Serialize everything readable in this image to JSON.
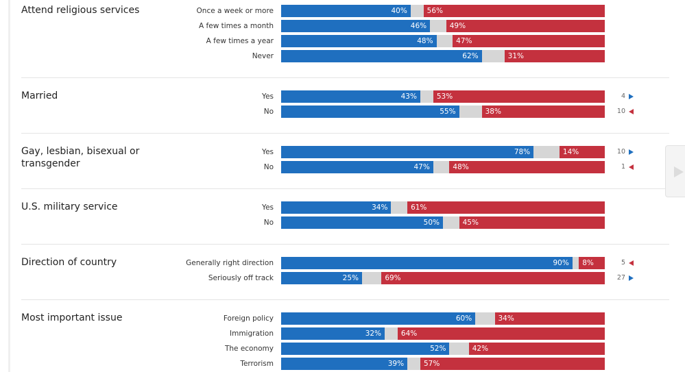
{
  "chart_data": {
    "type": "bar",
    "stacked": true,
    "orientation": "horizontal",
    "colors": {
      "democrat": "#1f6fbf",
      "other": "#d6d6d6",
      "republican": "#c4313e"
    },
    "groups": [
      {
        "title": "Attend religious services",
        "rows": [
          {
            "label": "Once a week or more",
            "dem": 40,
            "rep": 56,
            "dem_label": "40%",
            "rep_label": "56%"
          },
          {
            "label": "A few times a month",
            "dem": 46,
            "rep": 49,
            "dem_label": "46%",
            "rep_label": "49%"
          },
          {
            "label": "A few times a year",
            "dem": 48,
            "rep": 47,
            "dem_label": "48%",
            "rep_label": "47%"
          },
          {
            "label": "Never",
            "dem": 62,
            "rep": 31,
            "dem_label": "62%",
            "rep_label": "31%"
          }
        ]
      },
      {
        "title": "Married",
        "rows": [
          {
            "label": "Yes",
            "dem": 43,
            "rep": 53,
            "dem_label": "43%",
            "rep_label": "53%",
            "change": "4",
            "direction": "right"
          },
          {
            "label": "No",
            "dem": 55,
            "rep": 38,
            "dem_label": "55%",
            "rep_label": "38%",
            "change": "10",
            "direction": "left"
          }
        ]
      },
      {
        "title": "Gay, lesbian, bisexual or\ntransgender",
        "rows": [
          {
            "label": "Yes",
            "dem": 78,
            "rep": 14,
            "dem_label": "78%",
            "rep_label": "14%",
            "change": "10",
            "direction": "right"
          },
          {
            "label": "No",
            "dem": 47,
            "rep": 48,
            "dem_label": "47%",
            "rep_label": "48%",
            "change": "1",
            "direction": "left"
          }
        ]
      },
      {
        "title": "U.S. military service",
        "rows": [
          {
            "label": "Yes",
            "dem": 34,
            "rep": 61,
            "dem_label": "34%",
            "rep_label": "61%"
          },
          {
            "label": "No",
            "dem": 50,
            "rep": 45,
            "dem_label": "50%",
            "rep_label": "45%"
          }
        ]
      },
      {
        "title": "Direction of country",
        "rows": [
          {
            "label": "Generally right direction",
            "dem": 90,
            "rep": 8,
            "dem_label": "90%",
            "rep_label": "8%",
            "change": "5",
            "direction": "left"
          },
          {
            "label": "Seriously off track",
            "dem": 25,
            "rep": 69,
            "dem_label": "25%",
            "rep_label": "69%",
            "change": "27",
            "direction": "right"
          }
        ]
      },
      {
        "title": "Most important issue",
        "rows": [
          {
            "label": "Foreign policy",
            "dem": 60,
            "rep": 34,
            "dem_label": "60%",
            "rep_label": "34%"
          },
          {
            "label": "Immigration",
            "dem": 32,
            "rep": 64,
            "dem_label": "32%",
            "rep_label": "64%"
          },
          {
            "label": "The economy",
            "dem": 52,
            "rep": 42,
            "dem_label": "52%",
            "rep_label": "42%"
          },
          {
            "label": "Terrorism",
            "dem": 39,
            "rep": 57,
            "dem_label": "39%",
            "rep_label": "57%"
          }
        ]
      }
    ]
  },
  "next_button": {
    "icon": "chevron-right-icon"
  }
}
